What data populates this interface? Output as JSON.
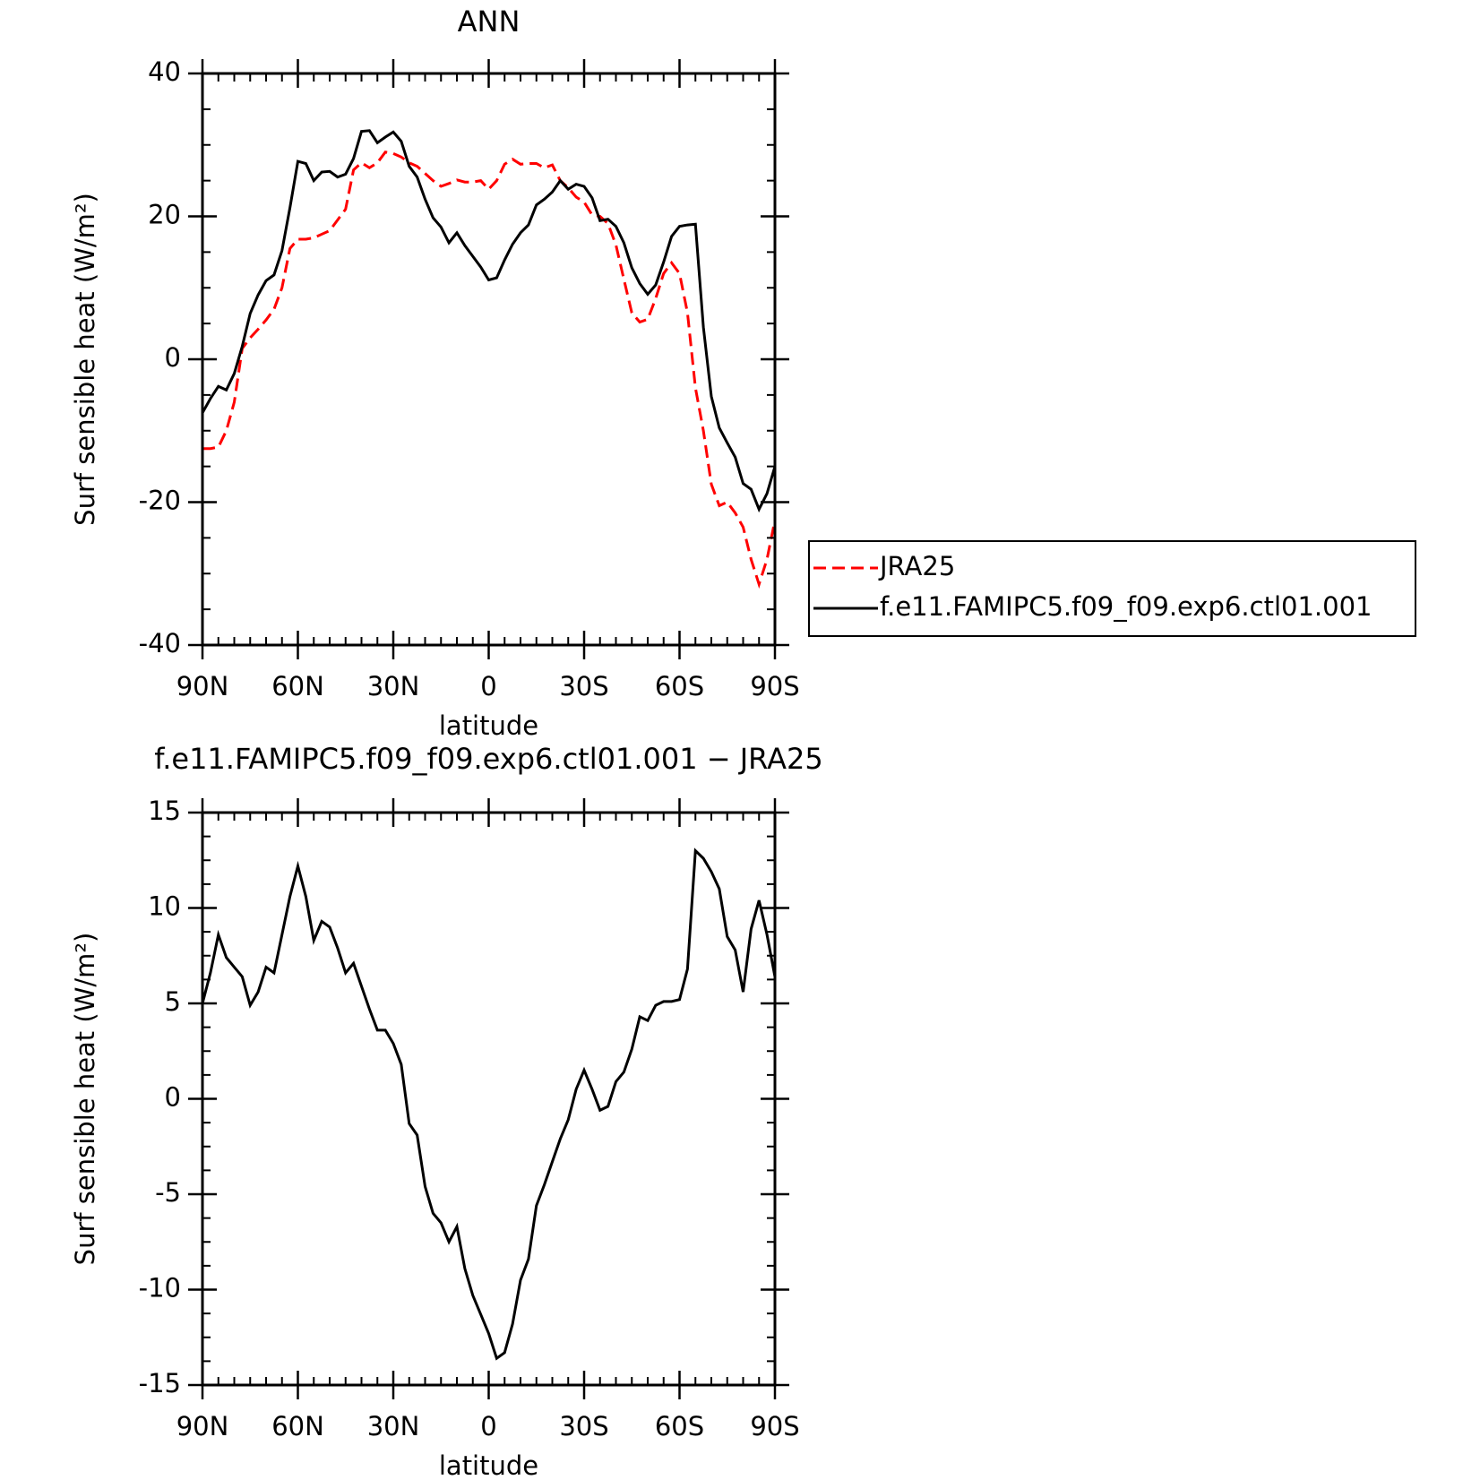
{
  "chart_data": [
    {
      "type": "line",
      "title": "ANN",
      "xlabel": "latitude",
      "ylabel": "Surf sensible heat (W/m²)",
      "x": [
        90,
        87.5,
        85,
        82.5,
        80,
        77.5,
        75,
        72.5,
        70,
        67.5,
        65,
        62.5,
        60,
        57.5,
        55,
        52.5,
        50,
        47.5,
        45,
        42.5,
        40,
        37.5,
        35,
        32.5,
        30,
        27.5,
        25,
        22.5,
        20,
        17.5,
        15,
        12.5,
        10,
        7.5,
        5,
        2.5,
        0,
        -2.5,
        -5,
        -7.5,
        -10,
        -12.5,
        -15,
        -17.5,
        -20,
        -22.5,
        -25,
        -27.5,
        -30,
        -32.5,
        -35,
        -37.5,
        -40,
        -42.5,
        -45,
        -47.5,
        -50,
        -52.5,
        -55,
        -57.5,
        -60,
        -62.5,
        -65,
        -67.5,
        -70,
        -72.5,
        -75,
        -77.5,
        -80,
        -82.5,
        -85,
        -87.5,
        -90
      ],
      "series": [
        {
          "name": "JRA25",
          "color": "#ff0000",
          "style": "dashed",
          "values": [
            -12.5,
            -12.5,
            -12.3,
            -10,
            -6,
            1.5,
            3,
            4.2,
            5.5,
            7,
            10,
            15.5,
            16.8,
            16.8,
            17,
            17.5,
            18,
            19.5,
            21,
            26.5,
            27.5,
            26.8,
            27.5,
            29,
            28.8,
            28.3,
            27.5,
            27,
            26,
            25,
            24.2,
            24.6,
            25.1,
            24.8,
            24.8,
            25,
            23.8,
            25,
            27.3,
            28,
            27.3,
            27.4,
            27.4,
            26.8,
            27.2,
            25,
            24,
            22.7,
            22,
            20.2,
            20,
            19,
            16,
            11.2,
            6.5,
            5.2,
            5.6,
            8.5,
            12,
            13.5,
            12,
            6.5,
            -4,
            -10,
            -17.5,
            -20.5,
            -20,
            -21.5,
            -23.5,
            -28,
            -31.5,
            -28,
            -22.5
          ]
        },
        {
          "name": "f.e11.FAMIPC5.f09_f09.exp6.ctl01.001",
          "color": "#000000",
          "style": "solid",
          "values": [
            -7.5,
            -5.5,
            -3.8,
            -4.3,
            -2,
            1.8,
            6.4,
            9,
            11,
            11.8,
            15.2,
            21.2,
            27.7,
            27.4,
            25,
            26.2,
            26.3,
            25.5,
            25.9,
            28.1,
            31.9,
            32,
            30.3,
            31.1,
            31.8,
            30.5,
            27,
            25.5,
            22.4,
            19.8,
            18.5,
            16.3,
            17.7,
            15.9,
            14.4,
            12.9,
            11.1,
            11.4,
            13.9,
            16.1,
            17.7,
            18.8,
            21.6,
            22.4,
            23.4,
            25,
            23.8,
            24.5,
            24.2,
            22.6,
            19.4,
            19.6,
            18.6,
            16.3,
            12.8,
            10.6,
            9.1,
            10.4,
            13.6,
            17.2,
            18.6,
            18.8,
            18.9,
            4.5,
            -5.2,
            -9.6,
            -11.7,
            -13.7,
            -17.4,
            -18.2,
            -21,
            -18.8,
            -15
          ]
        }
      ],
      "xlim": [
        90,
        -90
      ],
      "xticks": [
        {
          "value": 90,
          "label": "90N"
        },
        {
          "value": 60,
          "label": "60N"
        },
        {
          "value": 30,
          "label": "30N"
        },
        0,
        {
          "value": -30,
          "label": "30S"
        },
        {
          "value": -60,
          "label": "60S"
        },
        {
          "value": -90,
          "label": "90S"
        }
      ],
      "ylim": [
        -40,
        40
      ],
      "yticks": [
        -40,
        -20,
        0,
        20,
        40
      ],
      "legend": "right"
    },
    {
      "type": "line",
      "title": "f.e11.FAMIPC5.f09_f09.exp6.ctl01.001 − JRA25",
      "xlabel": "latitude",
      "ylabel": "Surf sensible heat (W/m²)",
      "x": [
        90,
        87.5,
        85,
        82.5,
        80,
        77.5,
        75,
        72.5,
        70,
        67.5,
        65,
        62.5,
        60,
        57.5,
        55,
        52.5,
        50,
        47.5,
        45,
        42.5,
        40,
        37.5,
        35,
        32.5,
        30,
        27.5,
        25,
        22.5,
        20,
        17.5,
        15,
        12.5,
        10,
        7.5,
        5,
        2.5,
        0,
        -2.5,
        -5,
        -7.5,
        -10,
        -12.5,
        -15,
        -17.5,
        -20,
        -22.5,
        -25,
        -27.5,
        -30,
        -32.5,
        -35,
        -37.5,
        -40,
        -42.5,
        -45,
        -47.5,
        -50,
        -52.5,
        -55,
        -57.5,
        -60,
        -62.5,
        -65,
        -67.5,
        -70,
        -72.5,
        -75,
        -77.5,
        -80,
        -82.5,
        -85,
        -87.5,
        -90
      ],
      "series": [
        {
          "color": "#000000",
          "style": "solid",
          "values": [
            5,
            6.6,
            8.6,
            7.4,
            6.9,
            6.4,
            4.9,
            5.6,
            6.9,
            6.6,
            8.6,
            10.6,
            12.2,
            10.6,
            8.3,
            9.3,
            9,
            7.9,
            6.6,
            7.1,
            5.9,
            4.7,
            3.6,
            3.6,
            2.9,
            1.8,
            -1.3,
            -1.9,
            -4.6,
            -6,
            -6.5,
            -7.5,
            -6.7,
            -8.9,
            -10.3,
            -11.3,
            -12.3,
            -13.6,
            -13.3,
            -11.8,
            -9.5,
            -8.4,
            -5.6,
            -4.5,
            -3.3,
            -2.1,
            -1.1,
            0.5,
            1.5,
            0.5,
            -0.6,
            -0.4,
            0.9,
            1.4,
            2.6,
            4.3,
            4.1,
            4.9,
            5.1,
            5.1,
            5.2,
            6.8,
            13,
            12.6,
            11.9,
            11,
            8.5,
            7.8,
            5.6,
            8.9,
            10.4,
            8.6,
            6.4
          ]
        }
      ],
      "xlim": [
        90,
        -90
      ],
      "xticks": [
        {
          "value": 90,
          "label": "90N"
        },
        {
          "value": 60,
          "label": "60N"
        },
        {
          "value": 30,
          "label": "30N"
        },
        0,
        {
          "value": -30,
          "label": "30S"
        },
        {
          "value": -60,
          "label": "60S"
        },
        {
          "value": -90,
          "label": "90S"
        }
      ],
      "ylim": [
        -15,
        15
      ],
      "yticks": [
        -15,
        -10,
        -5,
        0,
        5,
        10,
        15
      ]
    }
  ]
}
